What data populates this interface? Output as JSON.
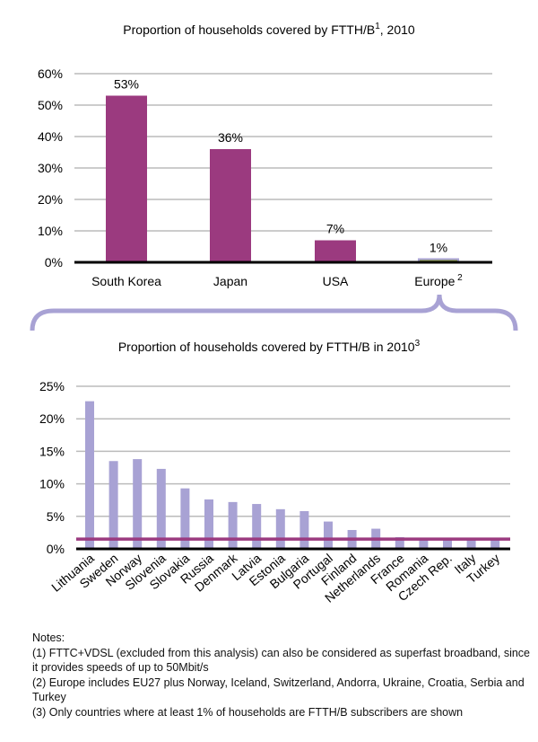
{
  "chart_data": [
    {
      "type": "bar",
      "title": "Proportion of households covered by FTTH/B",
      "title_sup": "1",
      "title_suffix": ", 2010",
      "categories": [
        "South Korea",
        "Japan",
        "USA",
        "Europe"
      ],
      "category_sups": [
        "",
        "",
        "",
        "2"
      ],
      "values": [
        53,
        36,
        7,
        1
      ],
      "data_labels": [
        "53%",
        "36%",
        "7%",
        "1%"
      ],
      "ylim": [
        0,
        60
      ],
      "yticks": [
        "0%",
        "10%",
        "20%",
        "30%",
        "40%",
        "50%",
        "60%"
      ],
      "grid": true,
      "colors": {
        "bar": "#9b3a7f",
        "europe_bar": "#8a9a3a",
        "europe_outline": "#a8a2d4"
      }
    },
    {
      "type": "bar",
      "title": "Proportion of households covered by FTTH/B in 2010",
      "title_sup": "3",
      "categories": [
        "Lithuania",
        "Sweden",
        "Norway",
        "Slovenia",
        "Slovakia",
        "Russia",
        "Denmark",
        "Latvia",
        "Estonia",
        "Bulgaria",
        "Portugal",
        "Finland",
        "Netherlands",
        "France",
        "Romania",
        "Czech Rep.",
        "Italy",
        "Turkey"
      ],
      "values": [
        22.7,
        13.5,
        13.8,
        12.3,
        9.3,
        7.6,
        7.2,
        6.9,
        6.1,
        5.8,
        4.2,
        2.9,
        3.1,
        1.8,
        1.5,
        1.4,
        1.4,
        1.4
      ],
      "reference_line": {
        "value": 1.5,
        "meaning": "Europe"
      },
      "ylim": [
        0,
        25
      ],
      "yticks": [
        "0%",
        "5%",
        "10%",
        "15%",
        "20%",
        "25%"
      ],
      "grid": true,
      "colors": {
        "bar": "#a8a2d4",
        "reference_line": "#9b3a7f",
        "brace": "#a8a2d4"
      }
    }
  ],
  "notes": {
    "heading": "Notes:",
    "items": [
      "(1) FTTC+VDSL (excluded from this analysis) can also be considered as superfast broadband, since it provides speeds of up to 50Mbit/s",
      "(2) Europe includes EU27 plus Norway, Iceland, Switzerland, Andorra, Ukraine, Croatia, Serbia and Turkey",
      "(3) Only countries where at least 1% of households are FTTH/B subscribers are shown"
    ]
  }
}
